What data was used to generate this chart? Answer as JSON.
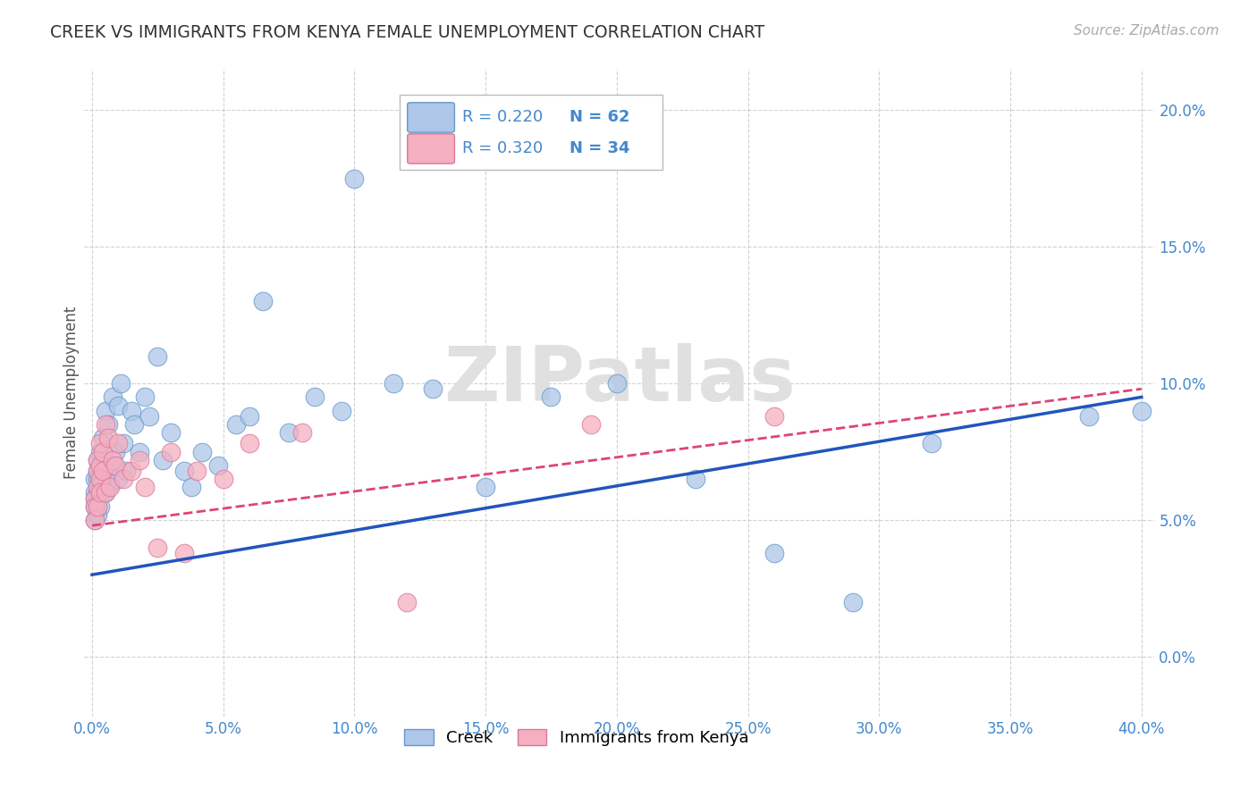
{
  "title": "CREEK VS IMMIGRANTS FROM KENYA FEMALE UNEMPLOYMENT CORRELATION CHART",
  "source": "Source: ZipAtlas.com",
  "ylabel": "Female Unemployment",
  "watermark": "ZIPatlas",
  "xlim": [
    -0.003,
    0.405
  ],
  "ylim": [
    -0.022,
    0.215
  ],
  "xticks": [
    0.0,
    0.05,
    0.1,
    0.15,
    0.2,
    0.25,
    0.3,
    0.35,
    0.4
  ],
  "yticks": [
    0.0,
    0.05,
    0.1,
    0.15,
    0.2
  ],
  "creek_color": "#aec6e8",
  "kenya_color": "#f4afc0",
  "creek_edge": "#6699cc",
  "kenya_edge": "#dd7799",
  "trendline_creek_color": "#2255bb",
  "trendline_kenya_color": "#dd4477",
  "axis_color": "#4488cc",
  "grid_color": "#cccccc",
  "title_color": "#333333",
  "background_color": "#ffffff",
  "creek_x": [
    0.001,
    0.001,
    0.001,
    0.001,
    0.001,
    0.002,
    0.002,
    0.002,
    0.002,
    0.002,
    0.002,
    0.003,
    0.003,
    0.003,
    0.003,
    0.003,
    0.004,
    0.004,
    0.005,
    0.005,
    0.005,
    0.006,
    0.006,
    0.007,
    0.008,
    0.008,
    0.009,
    0.01,
    0.01,
    0.011,
    0.012,
    0.013,
    0.015,
    0.016,
    0.018,
    0.02,
    0.022,
    0.025,
    0.027,
    0.03,
    0.035,
    0.038,
    0.042,
    0.048,
    0.055,
    0.06,
    0.065,
    0.075,
    0.085,
    0.095,
    0.1,
    0.115,
    0.13,
    0.15,
    0.175,
    0.2,
    0.23,
    0.26,
    0.29,
    0.32,
    0.38,
    0.4
  ],
  "creek_y": [
    0.065,
    0.06,
    0.058,
    0.055,
    0.05,
    0.072,
    0.068,
    0.065,
    0.06,
    0.055,
    0.052,
    0.075,
    0.07,
    0.065,
    0.06,
    0.055,
    0.08,
    0.065,
    0.09,
    0.07,
    0.06,
    0.085,
    0.068,
    0.063,
    0.095,
    0.07,
    0.075,
    0.092,
    0.065,
    0.1,
    0.078,
    0.068,
    0.09,
    0.085,
    0.075,
    0.095,
    0.088,
    0.11,
    0.072,
    0.082,
    0.068,
    0.062,
    0.075,
    0.07,
    0.085,
    0.088,
    0.13,
    0.082,
    0.095,
    0.09,
    0.175,
    0.1,
    0.098,
    0.062,
    0.095,
    0.1,
    0.065,
    0.038,
    0.02,
    0.078,
    0.088,
    0.09
  ],
  "kenya_x": [
    0.001,
    0.001,
    0.001,
    0.002,
    0.002,
    0.002,
    0.002,
    0.003,
    0.003,
    0.003,
    0.003,
    0.004,
    0.004,
    0.005,
    0.005,
    0.006,
    0.007,
    0.008,
    0.009,
    0.01,
    0.012,
    0.015,
    0.018,
    0.02,
    0.025,
    0.03,
    0.035,
    0.04,
    0.05,
    0.06,
    0.08,
    0.12,
    0.19,
    0.26
  ],
  "kenya_y": [
    0.058,
    0.055,
    0.05,
    0.072,
    0.068,
    0.062,
    0.055,
    0.078,
    0.07,
    0.065,
    0.06,
    0.075,
    0.068,
    0.085,
    0.06,
    0.08,
    0.062,
    0.072,
    0.07,
    0.078,
    0.065,
    0.068,
    0.072,
    0.062,
    0.04,
    0.075,
    0.038,
    0.068,
    0.065,
    0.078,
    0.082,
    0.02,
    0.085,
    0.088
  ],
  "creek_trendline_x": [
    0.0,
    0.4
  ],
  "creek_trendline_y": [
    0.03,
    0.095
  ],
  "kenya_trendline_x": [
    0.0,
    0.4
  ],
  "kenya_trendline_y": [
    0.048,
    0.098
  ]
}
